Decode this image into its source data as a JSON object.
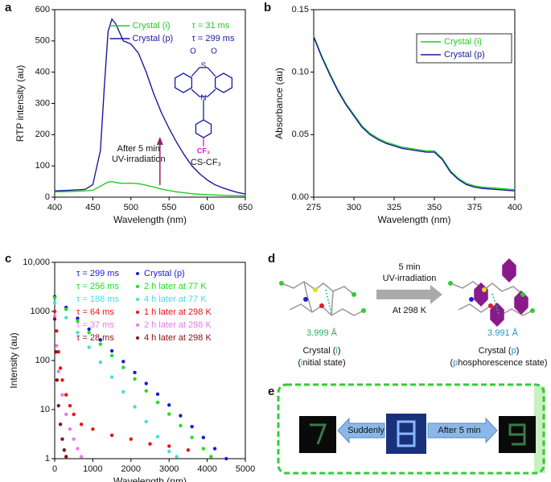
{
  "chart_data": [
    {
      "type": "line",
      "panel": "a",
      "xlabel": "Wavelength (nm)",
      "ylabel": "RTP intensity (au)",
      "xlim": [
        400,
        650
      ],
      "xticks": [
        400,
        450,
        500,
        550,
        600,
        650
      ],
      "ylim": [
        0,
        600
      ],
      "yticks": [
        0,
        100,
        200,
        300,
        400,
        500,
        600
      ],
      "legend": "upper center",
      "x": [
        400,
        420,
        440,
        450,
        460,
        465,
        470,
        475,
        480,
        490,
        500,
        510,
        520,
        530,
        540,
        550,
        560,
        570,
        580,
        590,
        600,
        610,
        620,
        630,
        640,
        650
      ],
      "series": [
        {
          "name": "Crystal (i)",
          "label": "τ = 31 ms",
          "color": "#22cc22",
          "values": [
            17,
            18,
            20,
            22,
            35,
            42,
            48,
            50,
            47,
            44,
            45,
            43,
            38,
            32,
            26,
            21,
            17,
            14,
            11,
            9,
            8,
            7,
            6,
            5,
            5,
            4
          ]
        },
        {
          "name": "Crystal (p)",
          "label": "τ = 299 ms",
          "color": "#1a1aa0",
          "values": [
            20,
            22,
            25,
            40,
            150,
            350,
            530,
            570,
            555,
            500,
            490,
            460,
            400,
            330,
            270,
            220,
            175,
            135,
            100,
            75,
            55,
            40,
            30,
            22,
            15,
            10
          ]
        }
      ],
      "annotation": [
        "After 5 min",
        "UV-irradiation"
      ],
      "compound": "CS-CF₃",
      "structure_labels": {
        "s": "S",
        "o1": "O",
        "o2": "O",
        "n": "N",
        "cf3": "CF₃"
      }
    },
    {
      "type": "line",
      "panel": "b",
      "xlabel": "Wavelength (nm)",
      "ylabel": "Absorbance (au)",
      "xlim": [
        275,
        400
      ],
      "xticks": [
        275,
        300,
        325,
        350,
        375,
        400
      ],
      "ylim": [
        0,
        0.15
      ],
      "yticks": [
        {
          "value": 0,
          "label": "0.00"
        },
        0.05,
        {
          "value": 0.1,
          "label": "0.10"
        },
        0.15
      ],
      "legend": "upper right",
      "x": [
        275,
        280,
        285,
        290,
        295,
        300,
        305,
        310,
        315,
        320,
        325,
        330,
        335,
        340,
        345,
        350,
        355,
        360,
        365,
        370,
        375,
        380,
        390,
        400
      ],
      "series": [
        {
          "name": "Crystal (i)",
          "color": "#22cc22",
          "values": [
            0.129,
            0.113,
            0.099,
            0.086,
            0.075,
            0.066,
            0.057,
            0.051,
            0.047,
            0.044,
            0.042,
            0.04,
            0.039,
            0.038,
            0.037,
            0.037,
            0.031,
            0.021,
            0.015,
            0.011,
            0.009,
            0.008,
            0.007,
            0.006
          ]
        },
        {
          "name": "Crystal (p)",
          "color": "#1a1aa0",
          "values": [
            0.128,
            0.112,
            0.098,
            0.085,
            0.074,
            0.065,
            0.056,
            0.05,
            0.046,
            0.043,
            0.041,
            0.039,
            0.038,
            0.037,
            0.036,
            0.036,
            0.03,
            0.02,
            0.014,
            0.01,
            0.008,
            0.007,
            0.006,
            0.005
          ]
        }
      ]
    },
    {
      "type": "scatter",
      "panel": "c",
      "xlabel": "Wavelength (nm)",
      "ylabel": "Intensity (au)",
      "log_y": true,
      "legend": "upper right",
      "xlim": [
        0,
        5000
      ],
      "xticks": [
        0,
        1000,
        2000,
        3000,
        4000,
        5000
      ],
      "ylim": [
        1,
        10000
      ],
      "yticks": [
        1,
        10,
        100,
        1000,
        {
          "value": 10000,
          "label": "10,000"
        }
      ],
      "series": [
        {
          "name": "Crystal (p)",
          "label": "τ = 299 ms",
          "color": "#1a1add",
          "x": [
            0,
            300,
            600,
            900,
            1200,
            1500,
            1800,
            2100,
            2400,
            2700,
            3000,
            3300,
            3600,
            3900,
            4200,
            4500
          ],
          "values": [
            2000,
            1203,
            723,
            435,
            262,
            157,
            95,
            57,
            34,
            20.6,
            12.4,
            7.5,
            4.5,
            2.7,
            1.6,
            1
          ]
        },
        {
          "name": "2 h later at 77 K",
          "label": "τ = 256 ms",
          "color": "#22dd22",
          "x": [
            0,
            300,
            600,
            900,
            1200,
            1500,
            1800,
            2100,
            2400,
            2700,
            3000,
            3300,
            3600,
            3900,
            4100
          ],
          "values": [
            1900,
            1102,
            639,
            371,
            215,
            125,
            72,
            42,
            24,
            14,
            8.1,
            4.7,
            2.7,
            1.6,
            1.1
          ]
        },
        {
          "name": "4 h later at 77 K",
          "label": "τ = 188 ms",
          "color": "#44dddd",
          "x": [
            0,
            300,
            600,
            900,
            1200,
            1500,
            1800,
            2100,
            2400,
            2700,
            3000,
            3200
          ],
          "values": [
            1500,
            746,
            371,
            185,
            92,
            46,
            23,
            11.4,
            5.7,
            2.8,
            1.4,
            1.1
          ]
        },
        {
          "name": "1 h later at 298 K",
          "label": "τ = 64 ms",
          "color": "#ee1111",
          "x": [
            0,
            50,
            100,
            150,
            200,
            300,
            400,
            500,
            700,
            1000,
            1500,
            2000,
            2500,
            3000,
            3500
          ],
          "values": [
            1000,
            400,
            150,
            70,
            40,
            20,
            12,
            8,
            5,
            4,
            3,
            2.5,
            2,
            1.8,
            1.5
          ]
        },
        {
          "name": "2 h later at 298 K",
          "label": "τ = 37 ms",
          "color": "#ee77ee",
          "x": [
            0,
            50,
            100,
            200,
            300,
            400,
            500,
            600,
            700
          ],
          "values": [
            800,
            200,
            60,
            20,
            8,
            4,
            2.5,
            1.6,
            1.1
          ]
        },
        {
          "name": "4 h later at 298 K",
          "label": "τ = 28 ms",
          "color": "#881111",
          "x": [
            0,
            30,
            60,
            100,
            150,
            200,
            250,
            300
          ],
          "values": [
            700,
            150,
            40,
            12,
            5,
            2.5,
            1.5,
            1.1
          ]
        }
      ]
    }
  ],
  "panel_d": {
    "panel": "d",
    "arrow_text": [
      "5 min",
      "UV-irradiation",
      "At 298 K"
    ],
    "left": {
      "distance": "3.999 Å",
      "label_parts": [
        "Crystal (",
        "i",
        ")"
      ],
      "state_parts": [
        "(",
        "i",
        "nitial state)"
      ]
    },
    "right": {
      "distance": "3.991 Å",
      "label_parts": [
        "Crystal (",
        "p",
        ")"
      ],
      "state_parts": [
        "(",
        "p",
        "hosphorescence state)"
      ]
    }
  },
  "panel_e": {
    "panel": "e",
    "left_arrow": "Suddenly",
    "right_arrow": "After 5 min"
  }
}
